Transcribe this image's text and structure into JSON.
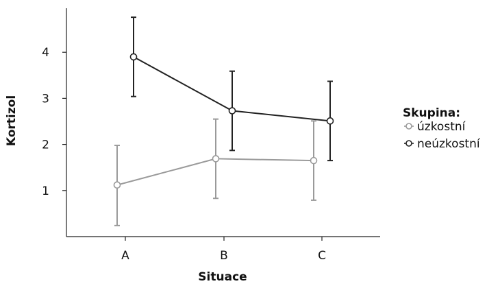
{
  "chart_data": {
    "type": "line",
    "xlabel": "Situace",
    "ylabel": "Kortizol",
    "categories": [
      "A",
      "B",
      "C"
    ],
    "y_ticks": [
      1,
      2,
      3,
      4
    ],
    "ylim": [
      0.0,
      5.0
    ],
    "grid": false,
    "error_bars": true,
    "legend": {
      "title": "Skupina:",
      "position": "right"
    },
    "series": [
      {
        "name": "úzkostní",
        "color": "#9a9a9a",
        "values": [
          1.12,
          1.69,
          1.65
        ],
        "error_low": [
          0.24,
          0.83,
          0.79
        ],
        "error_high": [
          1.98,
          2.55,
          2.51
        ]
      },
      {
        "name": "neúzkostní",
        "color": "#222222",
        "values": [
          3.9,
          2.73,
          2.51
        ],
        "error_low": [
          3.04,
          1.87,
          1.65
        ],
        "error_high": [
          4.76,
          3.59,
          3.37
        ]
      }
    ]
  }
}
